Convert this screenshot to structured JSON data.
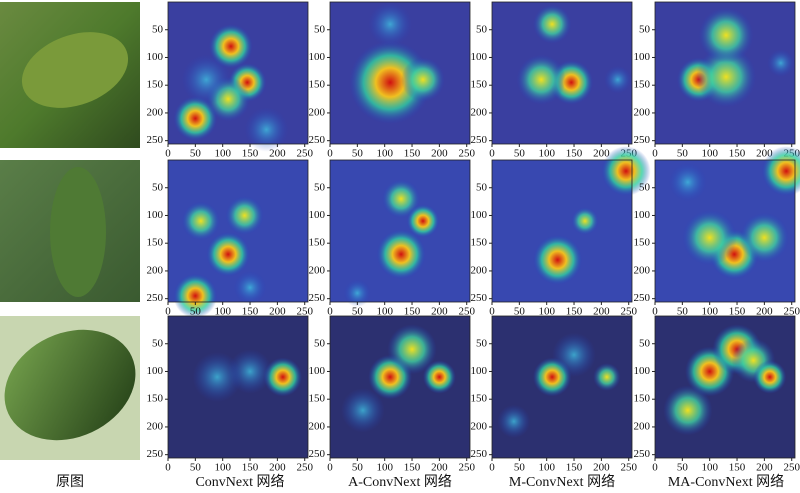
{
  "captions": [
    "原图",
    "ConvNext 网络",
    "A-ConvNext 网络",
    "M-ConvNext 网络",
    "MA-ConvNext 网络"
  ],
  "xticks": [
    0,
    50,
    100,
    150,
    200,
    250
  ],
  "yticks": [
    50,
    100,
    150,
    200,
    250
  ]
}
